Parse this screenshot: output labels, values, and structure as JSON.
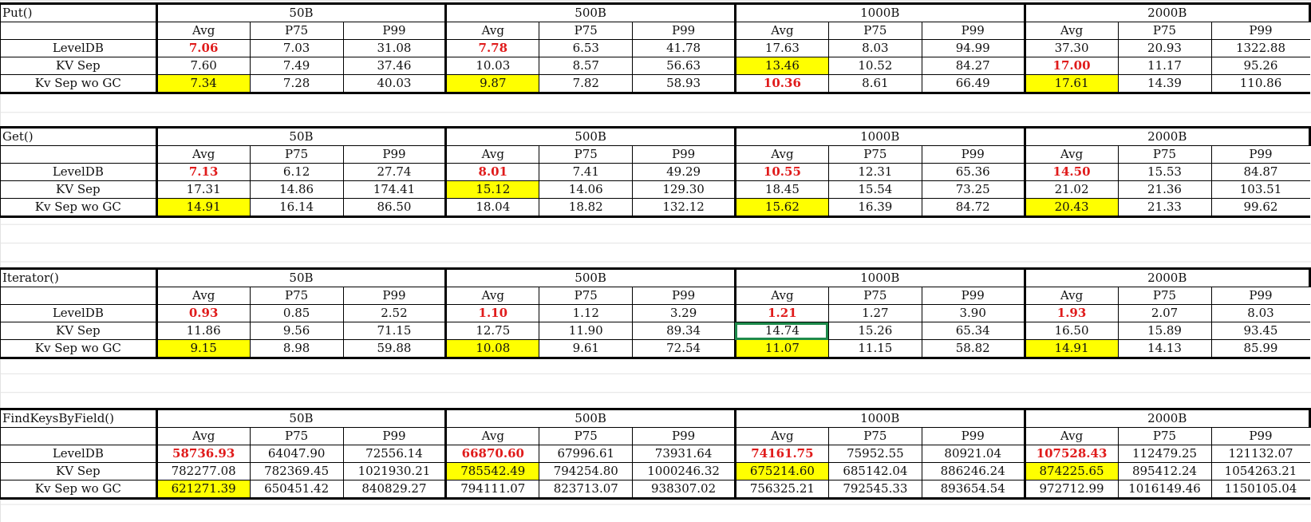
{
  "groups": [
    "50B",
    "500B",
    "1000B",
    "2000B"
  ],
  "subheaders": [
    "Avg",
    "P75",
    "P99"
  ],
  "blocks": [
    {
      "title": "Put()",
      "rows": [
        {
          "label": "LevelDB",
          "cells": [
            "7.06",
            "7.03",
            "31.08",
            "7.78",
            "6.53",
            "41.78",
            "17.63",
            "8.03",
            "94.99",
            "37.30",
            "20.93",
            "1322.88"
          ],
          "red": [
            0,
            3
          ],
          "yellow": []
        },
        {
          "label": "KV Sep",
          "cells": [
            "7.60",
            "7.49",
            "37.46",
            "10.03",
            "8.57",
            "56.63",
            "13.46",
            "10.52",
            "84.27",
            "17.00",
            "11.17",
            "95.26"
          ],
          "red": [
            9
          ],
          "yellow": [
            6
          ]
        },
        {
          "label": "Kv Sep wo GC",
          "cells": [
            "7.34",
            "7.28",
            "40.03",
            "9.87",
            "7.82",
            "58.93",
            "10.36",
            "8.61",
            "66.49",
            "17.61",
            "14.39",
            "110.86"
          ],
          "red": [
            6
          ],
          "yellow": [
            0,
            3,
            9
          ]
        }
      ]
    },
    {
      "title": "Get()",
      "rows": [
        {
          "label": "LevelDB",
          "cells": [
            "7.13",
            "6.12",
            "27.74",
            "8.01",
            "7.41",
            "49.29",
            "10.55",
            "12.31",
            "65.36",
            "14.50",
            "15.53",
            "84.87"
          ],
          "red": [
            0,
            3,
            6,
            9
          ],
          "yellow": []
        },
        {
          "label": "KV Sep",
          "cells": [
            "17.31",
            "14.86",
            "174.41",
            "15.12",
            "14.06",
            "129.30",
            "18.45",
            "15.54",
            "73.25",
            "21.02",
            "21.36",
            "103.51"
          ],
          "red": [],
          "yellow": [
            3
          ]
        },
        {
          "label": "Kv Sep wo GC",
          "cells": [
            "14.91",
            "16.14",
            "86.50",
            "18.04",
            "18.82",
            "132.12",
            "15.62",
            "16.39",
            "84.72",
            "20.43",
            "21.33",
            "99.62"
          ],
          "red": [],
          "yellow": [
            0,
            6,
            9
          ]
        }
      ]
    },
    {
      "title": "Iterator()",
      "rows": [
        {
          "label": "LevelDB",
          "cells": [
            "0.93",
            "0.85",
            "2.52",
            "1.10",
            "1.12",
            "3.29",
            "1.21",
            "1.27",
            "3.90",
            "1.93",
            "2.07",
            "8.03"
          ],
          "red": [
            0,
            3,
            6,
            9
          ],
          "yellow": []
        },
        {
          "label": "KV Sep",
          "cells": [
            "11.86",
            "9.56",
            "71.15",
            "12.75",
            "11.90",
            "89.34",
            "14.74",
            "15.26",
            "65.34",
            "16.50",
            "15.89",
            "93.45"
          ],
          "red": [],
          "yellow": []
        },
        {
          "label": "Kv Sep wo GC",
          "cells": [
            "9.15",
            "8.98",
            "59.88",
            "10.08",
            "9.61",
            "72.54",
            "11.07",
            "11.15",
            "58.82",
            "14.91",
            "14.13",
            "85.99"
          ],
          "red": [],
          "yellow": [
            0,
            3,
            6,
            9
          ]
        }
      ]
    },
    {
      "title": "FindKeysByField()",
      "rows": [
        {
          "label": "LevelDB",
          "cells": [
            "58736.93",
            "64047.90",
            "72556.14",
            "66870.60",
            "67996.61",
            "73931.64",
            "74161.75",
            "75952.55",
            "80921.04",
            "107528.43",
            "112479.25",
            "121132.07"
          ],
          "red": [
            0,
            3,
            6,
            9
          ],
          "yellow": []
        },
        {
          "label": "KV Sep",
          "cells": [
            "782277.08",
            "782369.45",
            "1021930.21",
            "785542.49",
            "794254.80",
            "1000246.32",
            "675214.60",
            "685142.04",
            "886246.24",
            "874225.65",
            "895412.24",
            "1054263.21"
          ],
          "red": [],
          "yellow": [
            3,
            6,
            9
          ]
        },
        {
          "label": "Kv Sep wo GC",
          "cells": [
            "621271.39",
            "650451.42",
            "840829.27",
            "794111.07",
            "823713.07",
            "938307.02",
            "756325.21",
            "792545.33",
            "893654.54",
            "972712.99",
            "1016149.46",
            "1150105.04"
          ],
          "red": [],
          "yellow": [
            0
          ]
        }
      ]
    }
  ]
}
